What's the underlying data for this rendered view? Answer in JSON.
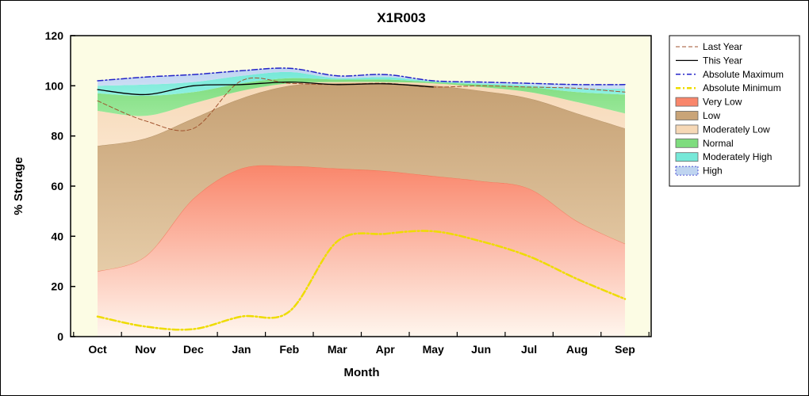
{
  "title": "X1R003",
  "axes": {
    "x_label": "Month",
    "y_label": "% Storage"
  },
  "legend": {
    "items": [
      {
        "label": "Last Year",
        "sample": "line",
        "color": "#A0522D",
        "dash": "5 3",
        "width": 1
      },
      {
        "label": "This Year",
        "sample": "line",
        "color": "#000000",
        "dash": "",
        "width": 1.3
      },
      {
        "label": "Absolute Maximum",
        "sample": "line",
        "color": "#2424C8",
        "dash": "6 3 2 3",
        "width": 1.5
      },
      {
        "label": "Absolute Minimum",
        "sample": "line",
        "color": "#EEDC00",
        "dash": "6 3 2 3",
        "width": 2.5
      },
      {
        "label": "Very Low",
        "sample": "box",
        "color": "#F9866B"
      },
      {
        "label": "Low",
        "sample": "box",
        "color": "#C9A478"
      },
      {
        "label": "Moderately Low",
        "sample": "box",
        "color": "#F6D8B6"
      },
      {
        "label": "Normal",
        "sample": "box",
        "color": "#7EDC7E"
      },
      {
        "label": "Moderately High",
        "sample": "box",
        "color": "#76E8D8"
      },
      {
        "label": "High",
        "sample": "box",
        "color": "#BFD4F0",
        "box_stroke": "#2424C8",
        "box_dash": "2 2"
      }
    ]
  },
  "chart_data": {
    "type": "area",
    "title": "X1R003",
    "xlabel": "Month",
    "ylabel": "% Storage",
    "categories": [
      "Oct",
      "Nov",
      "Dec",
      "Jan",
      "Feb",
      "Mar",
      "Apr",
      "May",
      "Jun",
      "Jul",
      "Aug",
      "Sep"
    ],
    "ylim": [
      0,
      120
    ],
    "y_ticks": [
      0,
      20,
      40,
      60,
      80,
      100,
      120
    ],
    "plot_bg": "#FCFCE4",
    "legend_position": "right",
    "grid": false,
    "bands": [
      {
        "name": "Very Low",
        "upper": [
          26,
          32,
          55,
          67,
          68,
          67,
          66,
          64,
          62,
          59,
          46,
          37
        ],
        "fill_top": "#F9866B",
        "fill_bottom": "#FFF6EE",
        "edge": "#F2694C"
      },
      {
        "name": "Low",
        "upper": [
          76,
          79,
          87,
          95,
          100,
          101,
          101,
          100,
          98,
          95,
          89,
          83
        ],
        "fill_top": "#C5A073",
        "fill_bottom": "#E6CCA8",
        "edge": "#AE8A5E"
      },
      {
        "name": "Moderately Low",
        "upper": [
          90,
          88,
          93,
          98,
          101,
          101.5,
          101.5,
          101,
          99.5,
          97.5,
          93.5,
          89
        ],
        "fill_top": "#F6D8B6",
        "fill_bottom": "#FAE4CB",
        "edge": ""
      },
      {
        "name": "Normal",
        "upper": [
          97,
          96,
          97.5,
          101,
          103,
          102.5,
          102.5,
          101.5,
          100.5,
          99.5,
          97.5,
          96.5
        ],
        "fill_top": "#7EDC7E",
        "fill_bottom": "#9AE89A",
        "edge": ""
      },
      {
        "name": "Moderately High",
        "upper": [
          100,
          100.5,
          101.5,
          104,
          105.5,
          103,
          103.5,
          101.8,
          101,
          100.2,
          99,
          98.8
        ],
        "fill_top": "#76E8D8",
        "fill_bottom": "#8FF0E0",
        "edge": ""
      },
      {
        "name": "High",
        "upper": [
          102,
          103.5,
          104.5,
          106,
          107,
          104,
          104.5,
          102,
          101.5,
          101,
          100.5,
          100.5
        ],
        "fill_top": "#BFD4F0",
        "fill_bottom": "#CEDEF6",
        "edge": ""
      }
    ],
    "series": [
      {
        "name": "Last Year",
        "color": "#A0522D",
        "dash": "5 3",
        "width": 1,
        "values": [
          94,
          86,
          83,
          102,
          101,
          100.5,
          101,
          99.5,
          100,
          99.5,
          99,
          97.5
        ]
      },
      {
        "name": "This Year",
        "color": "#000000",
        "dash": "",
        "width": 1.3,
        "values": [
          98.5,
          96.5,
          100,
          100.5,
          101.5,
          100.5,
          100.8,
          99.5,
          null,
          null,
          null,
          null
        ]
      },
      {
        "name": "Absolute Maximum",
        "color": "#2424C8",
        "dash": "7 3 2 3",
        "width": 1.5,
        "values": [
          102,
          103.5,
          104.5,
          106,
          107,
          104,
          104.5,
          102,
          101.5,
          101,
          100.5,
          100.5
        ]
      },
      {
        "name": "Absolute Minimum",
        "color": "#EEDC00",
        "dash": "8 3 2 3",
        "width": 2.5,
        "values": [
          8,
          4,
          3,
          8,
          10,
          38,
          41,
          42,
          38,
          32,
          23,
          15
        ]
      }
    ]
  }
}
